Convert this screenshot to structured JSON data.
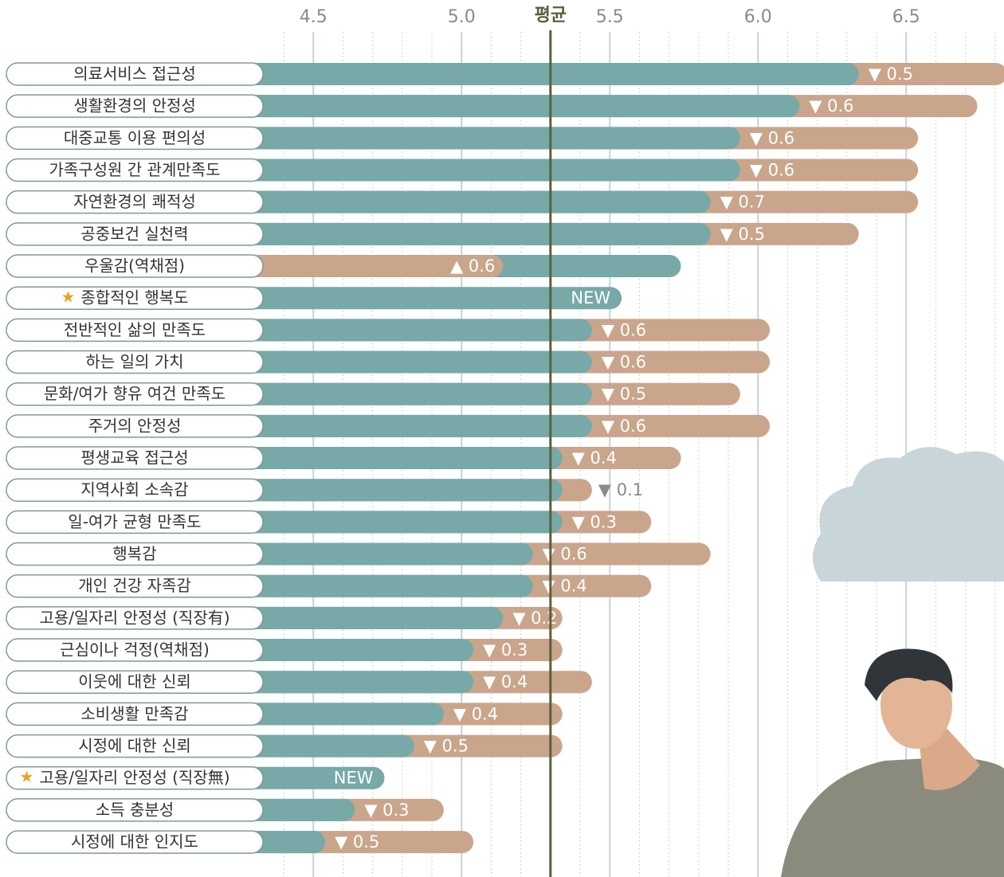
{
  "chart_data": {
    "type": "bar",
    "categories": [
      "의료서비스 접근성",
      "생활환경의 안정성",
      "대중교통 이용 편의성",
      "가족구성원 간 관계만족도",
      "자연환경의 쾌적성",
      "공중보건 실천력",
      "우울감(역채점)",
      "종합적인 행복도",
      "전반적인 삶의 만족도",
      "하는 일의 가치",
      "문화/여가 향유 여건 만족도",
      "주거의 안정성",
      "평생교육 접근성",
      "지역사회 소속감",
      "일-여가 균형 만족도",
      "행복감",
      "개인 건강 자족감",
      "고용/일자리 안정성 (직장有)",
      "근심이나 걱정(역채점)",
      "이웃에 대한 신뢰",
      "소비생활 만족감",
      "시정에 대한 신뢰",
      "고용/일자리 안정성 (직장無)",
      "소득 충분성",
      "시정에 대한 인지도"
    ],
    "values": [
      6.34,
      6.14,
      5.94,
      5.94,
      5.84,
      5.84,
      5.74,
      5.54,
      5.44,
      5.44,
      5.44,
      5.44,
      5.34,
      5.34,
      5.34,
      5.24,
      5.24,
      5.14,
      5.04,
      5.04,
      4.94,
      4.84,
      4.74,
      4.64,
      4.54
    ],
    "changes": [
      -0.5,
      -0.6,
      -0.6,
      -0.6,
      -0.7,
      -0.5,
      0.6,
      null,
      -0.6,
      -0.6,
      -0.5,
      -0.6,
      -0.4,
      -0.1,
      -0.3,
      -0.6,
      -0.4,
      -0.2,
      -0.3,
      -0.4,
      -0.4,
      -0.5,
      null,
      -0.3,
      -0.5
    ],
    "change_labels": [
      "▼ 0.5",
      "▼ 0.6",
      "▼ 0.6",
      "▼ 0.6",
      "▼ 0.7",
      "▼ 0.5",
      "▲ 0.6",
      "NEW",
      "▼ 0.6",
      "▼ 0.6",
      "▼ 0.5",
      "▼ 0.6",
      "▼ 0.4",
      "▼ 0.1",
      "▼ 0.3",
      "▼ 0.6",
      "▼ 0.4",
      "▼ 0.2",
      "▼ 0.3",
      "▼ 0.4",
      "▼ 0.4",
      "▼ 0.5",
      "NEW",
      "▼ 0.3",
      "▼ 0.5"
    ],
    "color": "#76a9a7",
    "change_color": "#c9a58b",
    "xlim": [
      4.33,
      6.83
    ],
    "xticks": [
      4.5,
      {
        "value": 5,
        "label": "5.0"
      },
      5.5,
      {
        "value": 6,
        "label": "6.0"
      },
      6.5
    ],
    "minor_xticks": [
      4.4,
      4.6,
      4.7,
      4.8,
      4.9,
      5.1,
      5.2,
      5.3,
      5.4,
      5.6,
      5.7,
      5.8,
      5.9,
      6.1,
      6.2,
      6.3,
      6.4,
      6.6,
      6.7,
      6.8
    ],
    "average": {
      "label": "평균",
      "value": 5.3
    }
  }
}
